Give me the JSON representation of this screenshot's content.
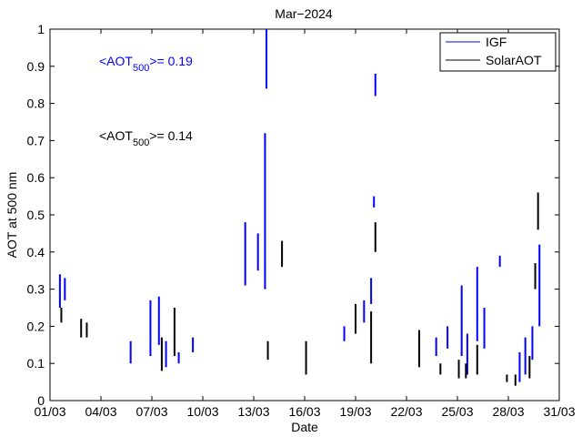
{
  "chart_data": {
    "type": "scatter",
    "title": "Mar−2024",
    "xlabel": "Date",
    "ylabel": "AOT at 500 nm",
    "xlim": [
      "2024-03-01",
      "2024-03-31"
    ],
    "ylim": [
      0,
      1
    ],
    "x_tick_labels": [
      "01/03",
      "04/03",
      "07/03",
      "10/03",
      "13/03",
      "16/03",
      "19/03",
      "22/03",
      "25/03",
      "28/03",
      "31/03"
    ],
    "y_tick_labels": [
      "0",
      "0.1",
      "0.2",
      "0.3",
      "0.4",
      "0.5",
      "0.6",
      "0.7",
      "0.8",
      "0.9",
      "1"
    ],
    "grid": false,
    "legend_position": "top-right",
    "annotations": [
      {
        "prefix": "<AOT",
        "subscript": "500",
        "suffix": ">= 0.19",
        "color": "#0000ff"
      },
      {
        "prefix": "<AOT",
        "subscript": "500",
        "suffix": ">= 0.14",
        "color": "#000000"
      }
    ],
    "series": [
      {
        "name": "IGF",
        "color": "#0000ff",
        "segments": [
          {
            "x": "2024-03-01 14:00",
            "y": [
              0.25,
              0.34
            ]
          },
          {
            "x": "2024-03-01 21:00",
            "y": [
              0.27,
              0.33
            ]
          },
          {
            "x": "2024-03-05 18:00",
            "y": [
              0.1,
              0.16
            ]
          },
          {
            "x": "2024-03-06 22:00",
            "y": [
              0.12,
              0.27
            ]
          },
          {
            "x": "2024-03-07 10:00",
            "y": [
              0.15,
              0.28
            ]
          },
          {
            "x": "2024-03-07 20:00",
            "y": [
              0.09,
              0.16
            ]
          },
          {
            "x": "2024-03-08 14:00",
            "y": [
              0.1,
              0.13
            ]
          },
          {
            "x": "2024-03-09 10:00",
            "y": [
              0.13,
              0.17
            ]
          },
          {
            "x": "2024-03-12 12:00",
            "y": [
              0.31,
              0.48
            ]
          },
          {
            "x": "2024-03-13 06:00",
            "y": [
              0.35,
              0.45
            ]
          },
          {
            "x": "2024-03-13 16:00",
            "y": [
              0.3,
              0.72
            ]
          },
          {
            "x": "2024-03-13 18:00",
            "y": [
              0.84,
              1.0
            ]
          },
          {
            "x": "2024-03-18 08:00",
            "y": [
              0.16,
              0.2
            ]
          },
          {
            "x": "2024-03-19 12:00",
            "y": [
              0.21,
              0.27
            ]
          },
          {
            "x": "2024-03-19 22:00",
            "y": [
              0.26,
              0.33
            ]
          },
          {
            "x": "2024-03-20 02:00",
            "y": [
              0.52,
              0.55
            ]
          },
          {
            "x": "2024-03-20 04:00",
            "y": [
              0.82,
              0.88
            ]
          },
          {
            "x": "2024-03-23 18:00",
            "y": [
              0.12,
              0.17
            ]
          },
          {
            "x": "2024-03-24 10:00",
            "y": [
              0.14,
              0.2
            ]
          },
          {
            "x": "2024-03-25 06:00",
            "y": [
              0.12,
              0.31
            ]
          },
          {
            "x": "2024-03-25 14:00",
            "y": [
              0.07,
              0.18
            ]
          },
          {
            "x": "2024-03-26 04:00",
            "y": [
              0.16,
              0.36
            ]
          },
          {
            "x": "2024-03-26 14:00",
            "y": [
              0.14,
              0.25
            ]
          },
          {
            "x": "2024-03-27 12:00",
            "y": [
              0.36,
              0.39
            ]
          },
          {
            "x": "2024-03-28 16:00",
            "y": [
              0.05,
              0.13
            ]
          },
          {
            "x": "2024-03-29 00:00",
            "y": [
              0.07,
              0.17
            ]
          },
          {
            "x": "2024-03-29 10:00",
            "y": [
              0.11,
              0.2
            ]
          },
          {
            "x": "2024-03-29 20:00",
            "y": [
              0.2,
              0.42
            ]
          }
        ]
      },
      {
        "name": "SolarAOT",
        "color": "#000000",
        "segments": [
          {
            "x": "2024-03-01 16:00",
            "y": [
              0.21,
              0.25
            ]
          },
          {
            "x": "2024-03-02 20:00",
            "y": [
              0.17,
              0.22
            ]
          },
          {
            "x": "2024-03-03 04:00",
            "y": [
              0.17,
              0.21
            ]
          },
          {
            "x": "2024-03-07 14:00",
            "y": [
              0.08,
              0.17
            ]
          },
          {
            "x": "2024-03-08 08:00",
            "y": [
              0.12,
              0.25
            ]
          },
          {
            "x": "2024-03-13 20:00",
            "y": [
              0.11,
              0.16
            ]
          },
          {
            "x": "2024-03-14 16:00",
            "y": [
              0.36,
              0.43
            ]
          },
          {
            "x": "2024-03-16 02:00",
            "y": [
              0.07,
              0.16
            ]
          },
          {
            "x": "2024-03-19 00:00",
            "y": [
              0.18,
              0.26
            ]
          },
          {
            "x": "2024-03-19 22:00",
            "y": [
              0.1,
              0.24
            ]
          },
          {
            "x": "2024-03-20 04:00",
            "y": [
              0.4,
              0.48
            ]
          },
          {
            "x": "2024-03-22 18:00",
            "y": [
              0.09,
              0.19
            ]
          },
          {
            "x": "2024-03-24 00:00",
            "y": [
              0.07,
              0.1
            ]
          },
          {
            "x": "2024-03-25 02:00",
            "y": [
              0.06,
              0.11
            ]
          },
          {
            "x": "2024-03-25 12:00",
            "y": [
              0.06,
              0.1
            ]
          },
          {
            "x": "2024-03-26 04:00",
            "y": [
              0.07,
              0.15
            ]
          },
          {
            "x": "2024-03-27 22:00",
            "y": [
              0.05,
              0.07
            ]
          },
          {
            "x": "2024-03-28 10:00",
            "y": [
              0.04,
              0.07
            ]
          },
          {
            "x": "2024-03-29 06:00",
            "y": [
              0.06,
              0.12
            ]
          },
          {
            "x": "2024-03-29 14:00",
            "y": [
              0.3,
              0.37
            ]
          },
          {
            "x": "2024-03-29 18:00",
            "y": [
              0.46,
              0.56
            ]
          }
        ]
      }
    ]
  }
}
